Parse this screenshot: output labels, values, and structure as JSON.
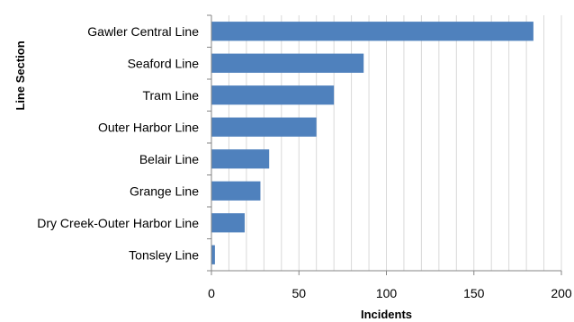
{
  "chart_data": {
    "type": "bar",
    "orientation": "horizontal",
    "categories": [
      "Gawler Central Line",
      "Seaford Line",
      "Tram Line",
      "Outer Harbor Line",
      "Belair Line",
      "Grange Line",
      "Dry Creek-Outer Harbor Line",
      "Tonsley Line"
    ],
    "values": [
      184,
      87,
      70,
      60,
      33,
      28,
      19,
      2
    ],
    "title": "",
    "xlabel": "Incidents",
    "ylabel": "Line Section",
    "xlim": [
      0,
      200
    ],
    "xticks": [
      "0",
      "50",
      "100",
      "150",
      "200"
    ],
    "grid": "vertical",
    "legend": "none",
    "bar_color": "#4f81bd",
    "grid_color": "#d9d9d9",
    "axis_color": "#868686"
  }
}
